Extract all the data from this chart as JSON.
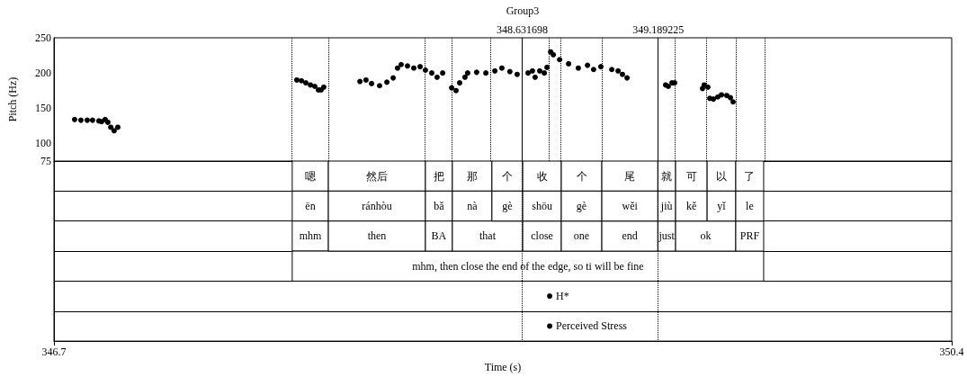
{
  "chart_data": [
    {
      "type": "scatter",
      "ylabel": "Pitch (Hz)",
      "xlim": [
        346.7,
        350.4
      ],
      "ylim": [
        75,
        250
      ],
      "yticks": [
        75,
        100,
        150,
        200,
        250
      ],
      "tick_labels": "y",
      "marker": "circle",
      "annotations": [
        "Group3"
      ],
      "ref_lines": [
        {
          "axis": "x",
          "value": 347.682,
          "label": null,
          "line_style": "dotted"
        },
        {
          "axis": "x",
          "value": 347.831,
          "label": null,
          "line_style": "dotted"
        },
        {
          "axis": "x",
          "value": 348.231,
          "label": null,
          "line_style": "dotted"
        },
        {
          "axis": "x",
          "value": 348.342,
          "label": null,
          "line_style": "dotted"
        },
        {
          "axis": "x",
          "value": 348.505,
          "label": null,
          "line_style": "dotted"
        },
        {
          "axis": "x",
          "value": 348.631698,
          "label": "348.631698",
          "line_style": "solid"
        },
        {
          "axis": "x",
          "value": 348.743,
          "label": null,
          "line_style": "dotted"
        },
        {
          "axis": "x",
          "value": 348.791,
          "label": null,
          "line_style": "dotted"
        },
        {
          "axis": "x",
          "value": 348.958,
          "label": null,
          "line_style": "dotted"
        },
        {
          "axis": "x",
          "value": 349.189225,
          "label": "349.189225",
          "line_style": "solid"
        },
        {
          "axis": "x",
          "value": 349.262,
          "label": null,
          "line_style": "dotted"
        },
        {
          "axis": "x",
          "value": 349.392,
          "label": null,
          "line_style": "dotted"
        },
        {
          "axis": "x",
          "value": 349.51,
          "label": null,
          "line_style": "dotted"
        },
        {
          "axis": "x",
          "value": 349.625,
          "label": null,
          "line_style": "dotted"
        }
      ],
      "series": [
        {
          "color": "#000000",
          "x": [
            346.785,
            346.811,
            346.837,
            346.859,
            346.885,
            346.896,
            346.911,
            346.922,
            346.934,
            346.948,
            346.963,
            347.701,
            347.72,
            347.738,
            347.757,
            347.775,
            347.79,
            347.801,
            347.812,
            347.961,
            347.986,
            348.009,
            348.042,
            348.072,
            348.098,
            348.116,
            348.131,
            348.157,
            348.183,
            348.209,
            348.231,
            348.257,
            348.279,
            348.302,
            348.339,
            348.357,
            348.372,
            348.394,
            348.405,
            348.442,
            348.48,
            348.517,
            348.546,
            348.579,
            348.609,
            348.654,
            348.672,
            348.683,
            348.702,
            348.721,
            348.732,
            348.747,
            348.758,
            348.784,
            348.821,
            348.861,
            348.899,
            348.924,
            348.954,
            348.999,
            349.025,
            349.043,
            349.062,
            349.221,
            349.232,
            349.247,
            349.258,
            349.373,
            349.38,
            349.395,
            349.403,
            349.418,
            349.436,
            349.451,
            349.473,
            349.488,
            349.499
          ],
          "values": [
            134,
            133,
            133,
            133,
            132,
            131,
            134,
            130,
            123,
            118,
            123,
            190,
            189,
            186,
            183,
            181,
            176,
            176,
            180,
            188,
            190,
            185,
            182,
            187,
            193,
            207,
            212,
            210,
            207,
            209,
            204,
            200,
            194,
            200,
            179,
            175,
            186,
            194,
            200,
            201,
            200,
            203,
            207,
            202,
            198,
            200,
            203,
            194,
            203,
            200,
            208,
            230,
            226,
            219,
            213,
            207,
            211,
            205,
            209,
            205,
            203,
            198,
            193,
            183,
            181,
            186,
            186,
            178,
            183,
            180,
            164,
            163,
            166,
            169,
            168,
            165,
            159
          ]
        }
      ]
    },
    {
      "type": "bar",
      "orientation": "horizontal",
      "xlabel": "Time (s)",
      "xlim": [
        346.7,
        350.4
      ],
      "xticks": [
        346.7,
        350.4
      ],
      "tick_labels": "x",
      "grid": "y",
      "categories": [
        null,
        null,
        null,
        null,
        null,
        null
      ],
      "ref_lines": [
        {
          "axis": "x",
          "value": 348.631698,
          "label": null,
          "line_style": "dotted"
        },
        {
          "axis": "x",
          "value": 349.189225,
          "label": null,
          "line_style": "dotted"
        }
      ],
      "series": [
        {
          "color": "#ffffff",
          "base": [
            347.682,
            347.682,
            347.682,
            347.682,
            null,
            null
          ],
          "values": [
            0.149,
            0.149,
            0.149,
            1.943,
            null,
            null
          ],
          "value_labels": [
            "嗯",
            "ēn",
            "mhm",
            "mhm, then close the end of the edge, so ti will be fine",
            null,
            null
          ]
        },
        {
          "color": "#ffffff",
          "base": [
            347.831,
            347.831,
            347.831,
            null,
            null,
            null
          ],
          "values": [
            0.4,
            0.4,
            0.4,
            null,
            null,
            null
          ],
          "value_labels": [
            "然后",
            "ránhòu",
            "then",
            null,
            null,
            null
          ]
        },
        {
          "color": "#ffffff",
          "base": [
            348.231,
            348.231,
            348.231,
            null,
            null,
            null
          ],
          "values": [
            0.111,
            0.111,
            0.111,
            null,
            null,
            null
          ],
          "value_labels": [
            "把",
            "bǎ",
            "BA",
            null,
            null,
            null
          ]
        },
        {
          "color": "#ffffff",
          "base": [
            348.342,
            348.342,
            348.342,
            null,
            null,
            null
          ],
          "values": [
            0.163,
            0.163,
            0.29,
            null,
            null,
            null
          ],
          "value_labels": [
            "那",
            "nà",
            "that",
            null,
            null,
            null
          ]
        },
        {
          "color": "#ffffff",
          "base": [
            348.505,
            348.505,
            348.632,
            null,
            null,
            null
          ],
          "values": [
            0.127,
            0.127,
            0.159,
            null,
            null,
            null
          ],
          "value_labels": [
            "个",
            "gè",
            "close",
            null,
            null,
            null
          ]
        },
        {
          "color": "#ffffff",
          "base": [
            348.632,
            348.632,
            348.791,
            null,
            null,
            null
          ],
          "values": [
            0.159,
            0.159,
            0.167,
            null,
            null,
            null
          ],
          "value_labels": [
            "收",
            "shōu",
            "one",
            null,
            null,
            null
          ]
        },
        {
          "color": "#ffffff",
          "base": [
            348.791,
            348.791,
            348.958,
            null,
            null,
            null
          ],
          "values": [
            0.167,
            0.167,
            0.231,
            null,
            null,
            null
          ],
          "value_labels": [
            "个",
            "gè",
            "end",
            null,
            null,
            null
          ]
        },
        {
          "color": "#ffffff",
          "base": [
            348.958,
            348.958,
            349.189,
            null,
            null,
            null
          ],
          "values": [
            0.231,
            0.231,
            0.073,
            null,
            null,
            null
          ],
          "value_labels": [
            "尾",
            "wěi",
            "just",
            null,
            null,
            null
          ]
        },
        {
          "color": "#ffffff",
          "base": [
            349.189,
            349.189,
            349.262,
            null,
            null,
            null
          ],
          "values": [
            0.073,
            0.073,
            0.248,
            null,
            null,
            null
          ],
          "value_labels": [
            "就",
            "jiù",
            "ok",
            null,
            null,
            null
          ]
        },
        {
          "color": "#ffffff",
          "base": [
            349.262,
            349.262,
            349.51,
            null,
            null,
            null
          ],
          "values": [
            0.13,
            0.13,
            0.115,
            null,
            null,
            null
          ],
          "value_labels": [
            "可",
            "kě",
            "PRF",
            null,
            null,
            null
          ]
        },
        {
          "color": "#ffffff",
          "base": [
            349.392,
            349.392,
            null,
            null,
            null,
            null
          ],
          "values": [
            0.118,
            0.118,
            null,
            null,
            null,
            null
          ],
          "value_labels": [
            "以",
            "yǐ",
            null,
            null,
            null,
            null
          ]
        },
        {
          "color": "#ffffff",
          "base": [
            349.51,
            349.51,
            null,
            null,
            null,
            null
          ],
          "values": [
            0.115,
            0.115,
            null,
            null,
            null,
            null
          ],
          "value_labels": [
            "了",
            "le",
            null,
            null,
            null,
            null
          ]
        },
        {
          "type": "scatter",
          "color": "#000000",
          "values": [
            null,
            null,
            null,
            null,
            348.743,
            348.743
          ],
          "value_labels": [
            null,
            null,
            null,
            null,
            "H*",
            "Perceived Stress"
          ]
        }
      ]
    }
  ]
}
